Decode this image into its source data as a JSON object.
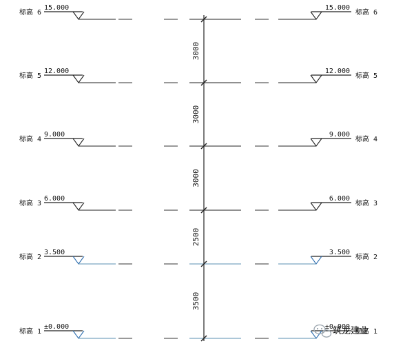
{
  "drawing": {
    "colors": {
      "line": "#222222",
      "datum_line": "#5a8fb0",
      "datum_symbol": "#2f6fb0",
      "dash": "#333333"
    },
    "levels": [
      {
        "name": "标高 6",
        "elevation": "15.000",
        "style": "black"
      },
      {
        "name": "标高 5",
        "elevation": "12.000",
        "style": "black"
      },
      {
        "name": "标高 4",
        "elevation": "9.000",
        "style": "black"
      },
      {
        "name": "标高 3",
        "elevation": "6.000",
        "style": "black"
      },
      {
        "name": "标高 2",
        "elevation": "3.500",
        "style": "blue"
      },
      {
        "name": "标高 1",
        "elevation": "±0.000",
        "style": "blue"
      }
    ],
    "dimensions": [
      "3000",
      "3000",
      "3000",
      "2500",
      "3500"
    ],
    "watermark": {
      "text": "筑龙建业",
      "icon": "wechat-icon"
    }
  }
}
